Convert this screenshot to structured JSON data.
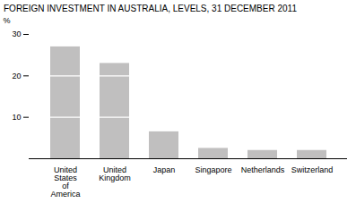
{
  "chart_data": {
    "type": "bar",
    "title": "FOREIGN INVESTMENT IN AUSTRALIA, LEVELS, 31 DECEMBER 2011",
    "ylabel": "%",
    "categories": [
      "United\nStates\nof\nAmerica",
      "United\nKingdom",
      "Japan",
      "Singapore",
      "Netherlands",
      "Switzerland"
    ],
    "values": [
      27.0,
      23.0,
      6.5,
      2.5,
      2.0,
      2.0
    ],
    "color": "#c0bfbf",
    "ylim": [
      0,
      30
    ],
    "yticks": [
      10,
      20,
      30
    ]
  }
}
